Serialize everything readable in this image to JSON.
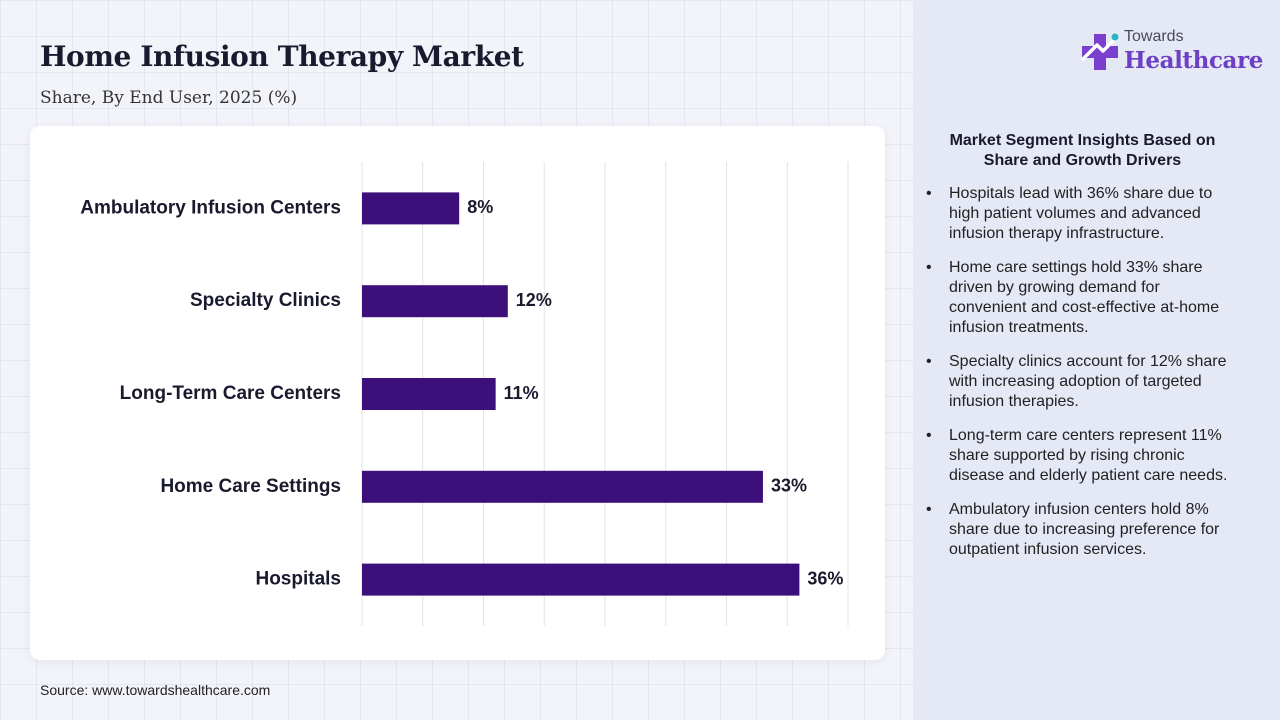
{
  "title": "Home Infusion Therapy Market",
  "subtitle": "Share, By End User, 2025 (%)",
  "logo": {
    "line1": "Towards",
    "line2": "Healthcare"
  },
  "source": "Source: www.towardshealthcare.com",
  "colors": {
    "bar": "#3d0f7a",
    "brand": "#6d3fc4",
    "panel": "#e5e8f5"
  },
  "insights": {
    "title": "Market Segment Insights Based on Share and Growth Drivers",
    "items": [
      "Hospitals lead with 36% share due to high patient volumes and advanced infusion therapy infrastructure.",
      "Home care settings hold 33% share driven by growing demand for convenient and cost-effective at-home infusion treatments.",
      "Specialty clinics account for 12% share with increasing adoption of targeted infusion therapies.",
      "Long-term care centers represent 11% share supported by rising chronic disease and elderly patient care needs.",
      "Ambulatory infusion centers hold 8% share due to increasing preference for outpatient infusion services."
    ]
  },
  "chart_data": {
    "type": "bar",
    "orientation": "horizontal",
    "title": "Home Infusion Therapy Market",
    "subtitle": "Share, By End User, 2025 (%)",
    "categories": [
      "Ambulatory Infusion Centers",
      "Specialty Clinics",
      "Long-Term Care Centers",
      "Home Care Settings",
      "Hospitals"
    ],
    "values": [
      8,
      12,
      11,
      33,
      36
    ],
    "data_labels": [
      "8%",
      "12%",
      "11%",
      "33%",
      "36%"
    ],
    "unit": "%",
    "xlim": [
      0,
      40
    ],
    "grid_step": 5,
    "grid": true,
    "axis_tick_labels": false,
    "legend": "none"
  }
}
